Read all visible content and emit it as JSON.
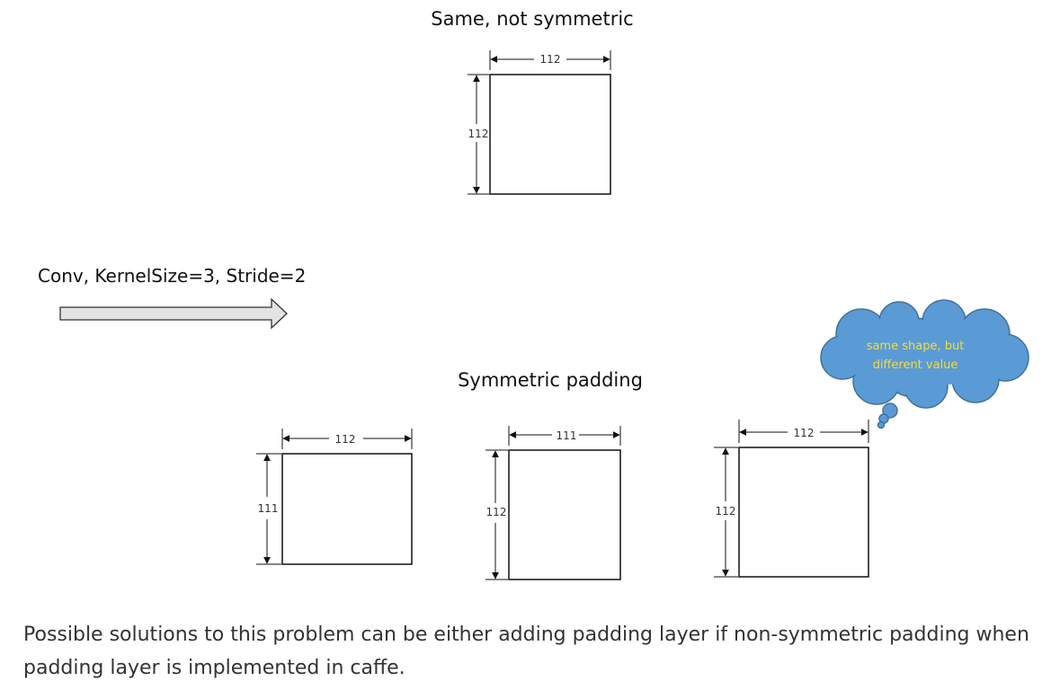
{
  "diagram": {
    "top_title": "Same, not symmetric",
    "bottom_title": "Symmetric padding",
    "conv_label": "Conv, KernelSize=3, Stride=2",
    "cloud_line1": "same shape, but",
    "cloud_line2": "different value",
    "top_box": {
      "width_label": "112",
      "height_label": "112"
    },
    "bottom_boxes": [
      {
        "width_label": "112",
        "height_label": "111"
      },
      {
        "width_label": "111",
        "height_label": "112"
      },
      {
        "width_label": "112",
        "height_label": "112"
      }
    ]
  },
  "caption": "Possible solutions to this problem can be either adding padding layer if non-symmetric padding when padding layer is implemented in caffe."
}
